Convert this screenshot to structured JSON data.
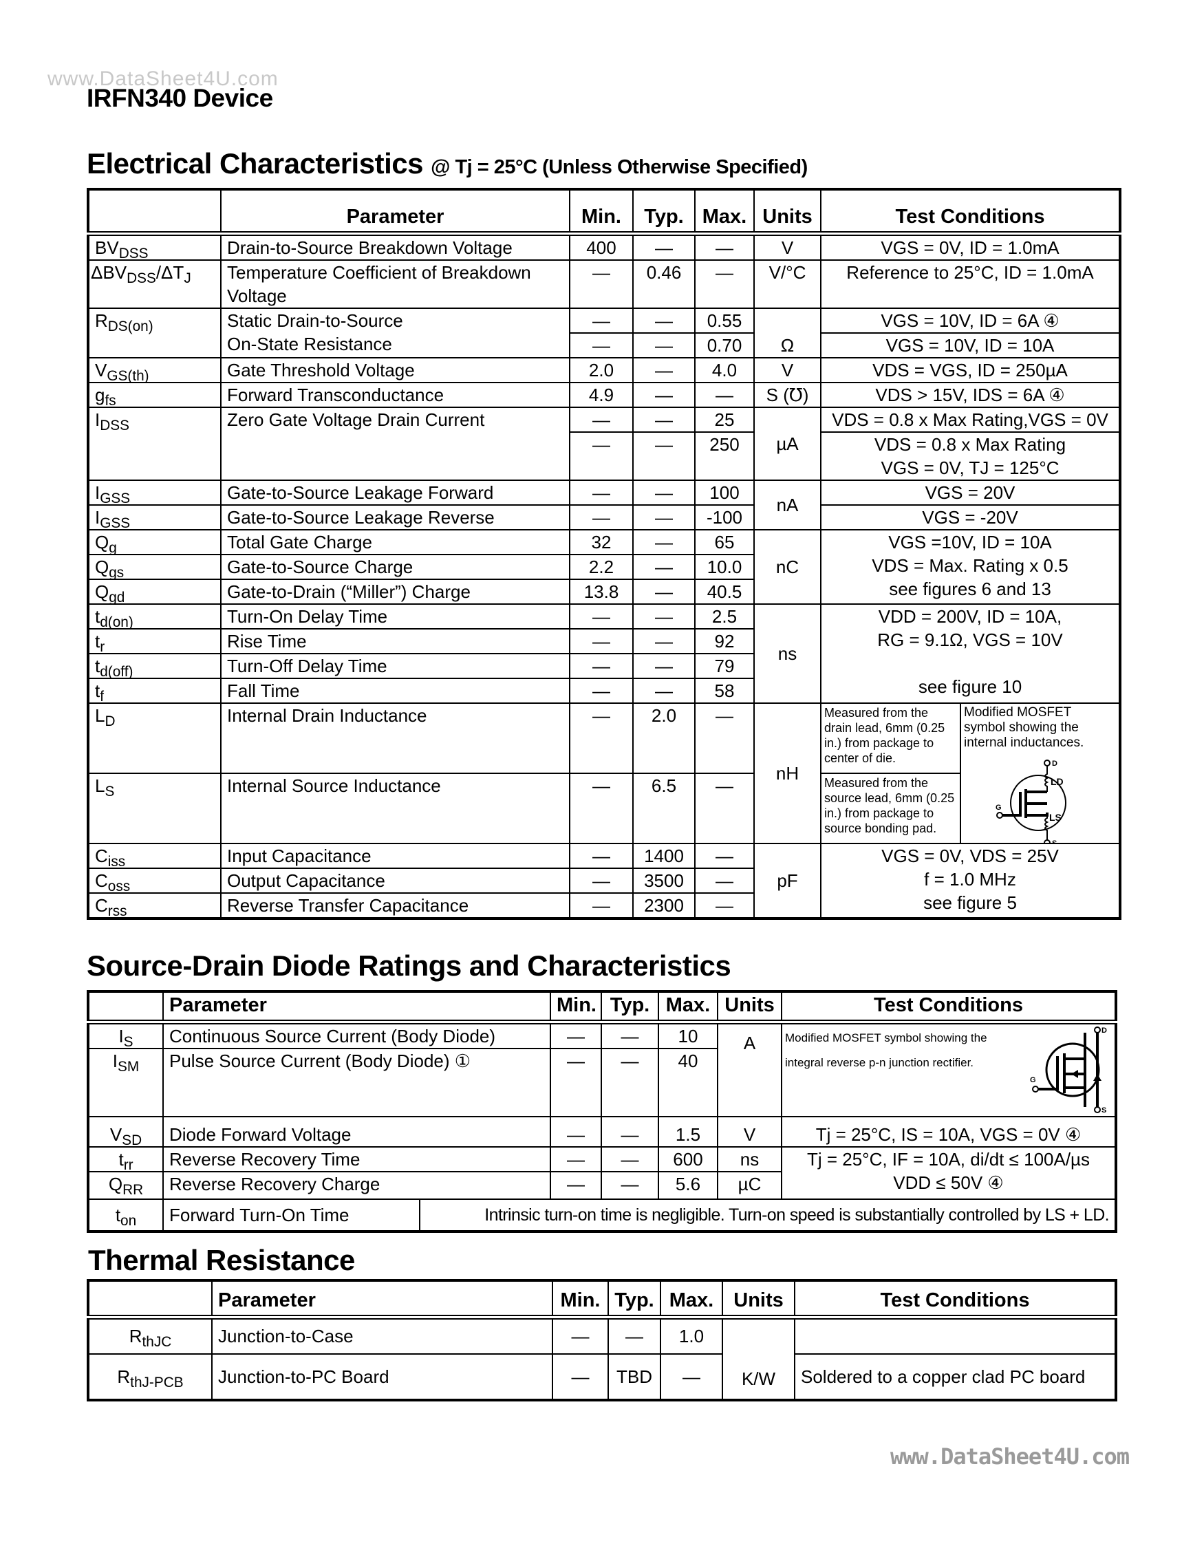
{
  "watermark_top": "www.DataSheet4U.com",
  "watermark_bottom": "www.DataSheet4U.com",
  "device_title": "IRFN340 Device",
  "ec": {
    "title": "Electrical Characteristics",
    "cond": "@ Tj = 25°C (Unless Otherwise Specified)",
    "headers": [
      "Parameter",
      "Min.",
      "Typ.",
      "Max.",
      "Units",
      "Test Conditions"
    ],
    "rows": [
      {
        "m": "BV",
        "s": "DSS",
        "param": "Drain-to-Source Breakdown Voltage",
        "min": "400",
        "typ": "—",
        "max": "—",
        "unit": "V",
        "test": "VGS = 0V, ID = 1.0mA"
      },
      {
        "m": "ΔBV",
        "s": "DSS",
        "m2": "/ΔT",
        "s2": "J",
        "param": "Temperature Coefficient of Breakdown",
        "param2": "Voltage",
        "min": "—",
        "typ": "0.46",
        "max": "—",
        "unit": "V/°C",
        "test": "Reference to 25°C, ID = 1.0mA"
      },
      {
        "m": "R",
        "s": "DS(on)",
        "param": "Static Drain-to-Source",
        "param2": "On-State Resistance",
        "min": [
          "—",
          "—"
        ],
        "typ": [
          "—",
          "—"
        ],
        "max": [
          "0.55",
          "0.70"
        ],
        "unit": "Ω",
        "test": [
          "VGS = 10V, ID = 6A ④",
          "VGS = 10V, ID = 10A"
        ]
      },
      {
        "m": "V",
        "s": "GS(th)",
        "param": "Gate Threshold Voltage",
        "min": "2.0",
        "typ": "—",
        "max": "4.0",
        "unit": "V",
        "test": "VDS = VGS, ID = 250µA"
      },
      {
        "m": "g",
        "s": "fs",
        "param": "Forward  Transconductance",
        "min": "4.9",
        "typ": "—",
        "max": "—",
        "unit": "S (℧)",
        "test": "VDS > 15V, IDS = 6A ④"
      },
      {
        "m": "I",
        "s": "DSS",
        "param": "Zero Gate Voltage Drain Current",
        "min": [
          "—",
          "—"
        ],
        "typ": [
          "—",
          "—"
        ],
        "max": [
          "25",
          "250"
        ],
        "unit": "µA",
        "test": [
          "VDS = 0.8 x Max Rating,VGS = 0V",
          "VDS = 0.8 x Max Rating",
          "VGS = 0V, TJ = 125°C"
        ]
      },
      {
        "m": "I",
        "s": "GSS",
        "param": "Gate-to-Source Leakage Forward",
        "min": "—",
        "typ": "—",
        "max": "100",
        "unit": "nA",
        "test": "VGS = 20V"
      },
      {
        "m": "I",
        "s": "GSS",
        "param": "Gate-to-Source Leakage Reverse",
        "min": "—",
        "typ": "—",
        "max": "-100",
        "test": "VGS = -20V"
      },
      {
        "m": "Q",
        "s": "g",
        "param": "Total Gate Charge",
        "min": "32",
        "typ": "—",
        "max": "65",
        "unit": "nC"
      },
      {
        "m": "Q",
        "s": "gs",
        "param": "Gate-to-Source  Charge",
        "min": "2.2",
        "typ": "—",
        "max": "10.0"
      },
      {
        "m": "Q",
        "s": "gd",
        "param": "Gate-to-Drain (“Miller”) Charge",
        "min": "13.8",
        "typ": "—",
        "max": "40.5"
      },
      {
        "m": "t",
        "s": "d(on)",
        "param": "Turn-On Delay Time",
        "min": "—",
        "typ": "—",
        "max": "2.5",
        "unit": "ns"
      },
      {
        "m": "t",
        "s": "r",
        "param": "Rise Time",
        "min": "—",
        "typ": "—",
        "max": "92"
      },
      {
        "m": "t",
        "s": "d(off)",
        "param": "Turn-Off Delay Time",
        "min": "—",
        "typ": "—",
        "max": "79"
      },
      {
        "m": "t",
        "s": "f",
        "param": "Fall Time",
        "min": "—",
        "typ": "—",
        "max": "58"
      },
      {
        "m": "L",
        "s": "D",
        "param": "Internal Drain Inductance",
        "min": "—",
        "typ": "2.0",
        "max": "—",
        "unit": "nH",
        "note": "Measured from the drain lead, 6mm (0.25 in.) from package to center of die."
      },
      {
        "m": "L",
        "s": "S",
        "param": "Internal Source Inductance",
        "min": "—",
        "typ": "6.5",
        "max": "—",
        "note": "Measured from the source lead, 6mm (0.25 in.) from package to source bonding pad."
      },
      {
        "m": "C",
        "s": "iss",
        "param": "Input Capacitance",
        "min": "—",
        "typ": "1400",
        "max": "—",
        "unit": "pF"
      },
      {
        "m": "C",
        "s": "oss",
        "param": "Output Capacitance",
        "min": "—",
        "typ": "3500",
        "max": "—"
      },
      {
        "m": "C",
        "s": "rss",
        "param": "Reverse Transfer Capacitance",
        "min": "—",
        "typ": "2300",
        "max": "—"
      }
    ],
    "q_test": [
      "VGS =10V, ID = 10A",
      "VDS = Max. Rating x 0.5",
      "see figures 6 and 13"
    ],
    "t_test": [
      "VDD = 200V, ID = 10A,",
      "RG = 9.1Ω, VGS = 10V",
      "",
      "see figure 10"
    ],
    "l_note": "Modified MOSFET symbol showing the internal inductances.",
    "l_symbol": {
      "icon": "mosfet-inductance-symbol",
      "labels": [
        "D",
        "LD",
        "LS",
        "G",
        "S"
      ]
    },
    "c_test": [
      "VGS = 0V, VDS = 25V",
      "f = 1.0 MHz",
      "see figure 5"
    ]
  },
  "sd": {
    "title": "Source-Drain Diode Ratings and Characteristics",
    "headers": [
      "Parameter",
      "Min.",
      "Typ.",
      "Max.",
      "Units",
      "Test Conditions"
    ],
    "rows": [
      {
        "m": "I",
        "s": "S",
        "param": "Continuous Source Current (Body Diode)",
        "min": "—",
        "typ": "—",
        "max": "10",
        "unit": "A"
      },
      {
        "m": "I",
        "s": "SM",
        "param": "Pulse Source Current (Body Diode) ①",
        "min": "—",
        "typ": "—",
        "max": "40"
      },
      {
        "m": "V",
        "s": "SD",
        "param": "Diode Forward Voltage",
        "min": "—",
        "typ": "—",
        "max": "1.5",
        "unit": "V",
        "test": "Tj = 25°C, IS = 10A, VGS = 0V ④"
      },
      {
        "m": "t",
        "s": "rr",
        "param": "Reverse Recovery Time",
        "min": "—",
        "typ": "—",
        "max": "600",
        "unit": "ns"
      },
      {
        "m": "Q",
        "s": "RR",
        "param": "Reverse Recovery Charge",
        "min": "—",
        "typ": "—",
        "max": "5.6",
        "unit": "µC"
      },
      {
        "m": "t",
        "s": "on",
        "param": "Forward  Turn-On  Time",
        "text": "Intrinsic turn-on time is negligible. Turn-on speed is substantially controlled by LS + LD."
      }
    ],
    "is_note": "Modified MOSFET symbol showing the integral reverse p-n junction rectifier.",
    "is_symbol": {
      "icon": "mosfet-diode-symbol",
      "labels": [
        "D",
        "G",
        "S"
      ]
    },
    "rr_test": [
      "Tj = 25°C, IF = 10A, di/dt ≤ 100A/µs",
      "VDD ≤ 50V ④"
    ]
  },
  "th": {
    "title": "Thermal Resistance",
    "headers": [
      "Parameter",
      "Min.",
      "Typ.",
      "Max.",
      "Units",
      "Test Conditions"
    ],
    "rows": [
      {
        "m": "R",
        "s": "thJC",
        "param": "Junction-to-Case",
        "min": "—",
        "typ": "—",
        "max": "1.0",
        "unit": "K/W",
        "test": ""
      },
      {
        "m": "R",
        "s": "thJ-PCB",
        "param": "Junction-to-PC Board",
        "min": "—",
        "typ": "TBD",
        "max": "—",
        "test": "Soldered to a copper clad PC board"
      }
    ]
  }
}
